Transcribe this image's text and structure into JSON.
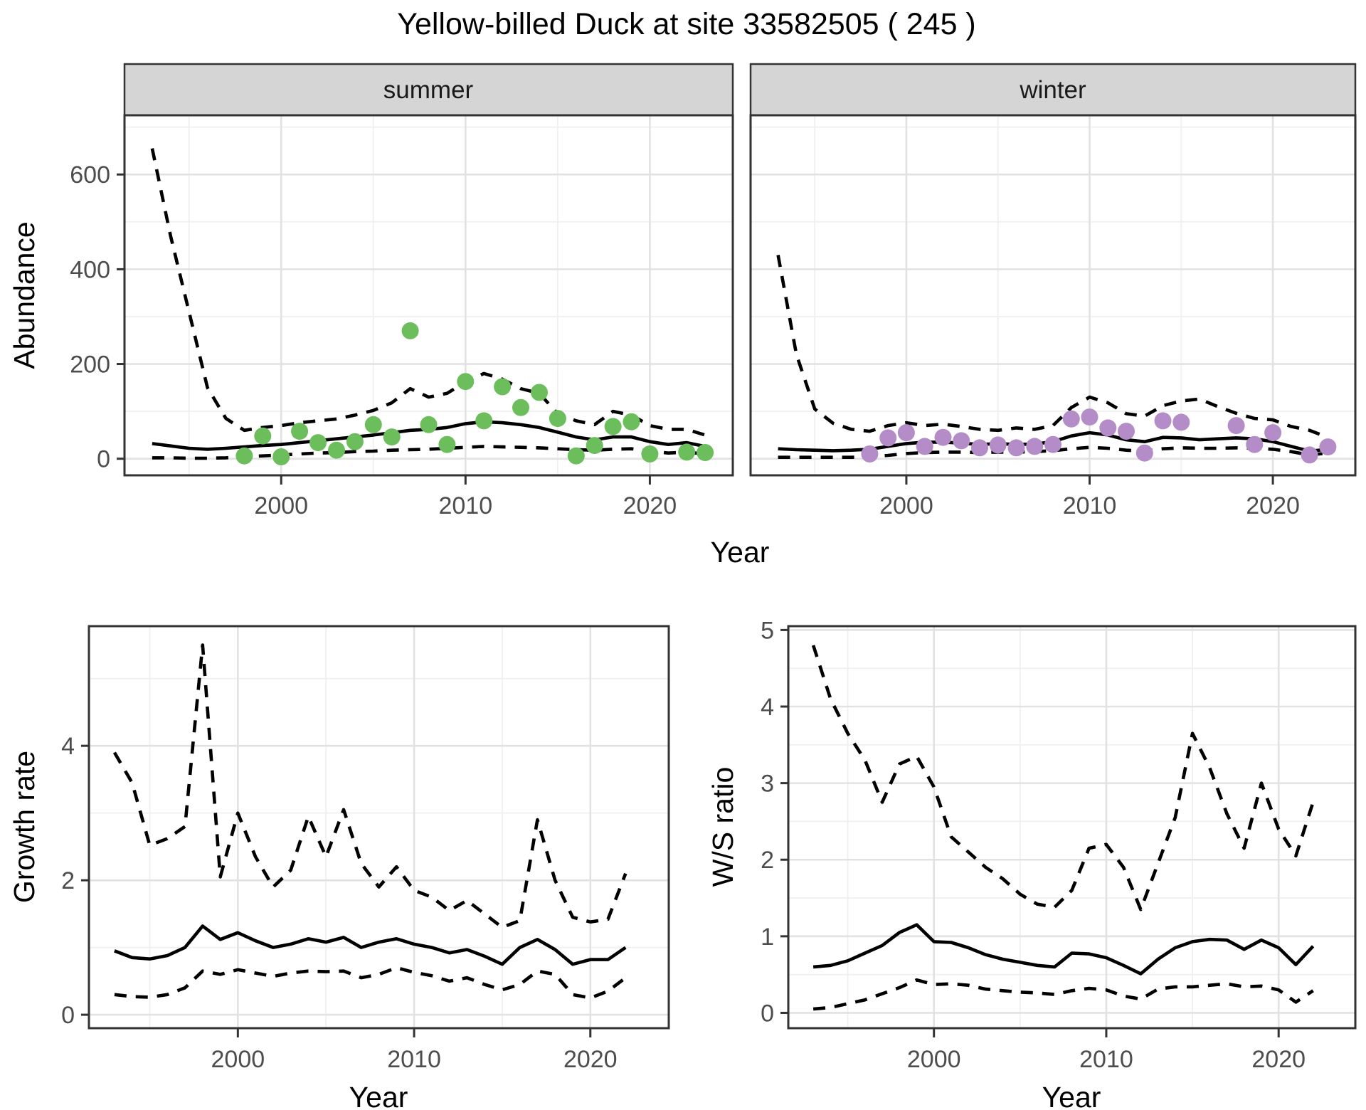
{
  "title": "Yellow-billed Duck at site 33582505 ( 245 )",
  "facet_labels": {
    "summer": "summer",
    "winter": "winter"
  },
  "axis_labels": {
    "abundance": "Abundance",
    "year_top": "Year",
    "growth": "Growth rate",
    "year_growth": "Year",
    "ws": "W/S ratio",
    "year_ws": "Year"
  },
  "colors": {
    "summer_point": "#6BBE5B",
    "winter_point": "#B48CC8",
    "line": "#000000",
    "strip_bg": "#D5D5D5",
    "panel_border": "#333333",
    "grid_major": "#E2E2E2",
    "grid_minor": "#F0F0F0",
    "tick_text": "#4d4d4d",
    "tick_mark": "#333333",
    "panel_bg": "#ffffff"
  },
  "chart_data": [
    {
      "id": "abundance-summer",
      "type": "line",
      "strip": "summer",
      "ylabel": "Abundance",
      "xlabel": "Year",
      "x_domain": [
        1991.5,
        2024.5
      ],
      "y_domain": [
        -35,
        725
      ],
      "x_ticks": [
        2000,
        2010,
        2020
      ],
      "x_minor": [
        1995,
        2005,
        2015
      ],
      "y_ticks": [
        0,
        200,
        400,
        600
      ],
      "y_minor": [
        100,
        300,
        500,
        700
      ],
      "x_years": [
        1993,
        1994,
        1995,
        1996,
        1997,
        1998,
        1999,
        2000,
        2001,
        2002,
        2003,
        2004,
        2005,
        2006,
        2007,
        2008,
        2009,
        2010,
        2011,
        2012,
        2013,
        2014,
        2015,
        2016,
        2017,
        2018,
        2019,
        2020,
        2021,
        2022,
        2023
      ],
      "series": [
        {
          "name": "upper_ci",
          "style": "dashed",
          "values": [
            655,
            470,
            310,
            150,
            85,
            60,
            66,
            70,
            76,
            80,
            84,
            92,
            102,
            118,
            148,
            130,
            138,
            162,
            180,
            168,
            148,
            138,
            95,
            80,
            72,
            100,
            92,
            70,
            62,
            62,
            50
          ]
        },
        {
          "name": "median",
          "style": "solid",
          "values": [
            32,
            27,
            22,
            20,
            22,
            25,
            28,
            30,
            34,
            38,
            42,
            46,
            50,
            55,
            60,
            62,
            66,
            74,
            78,
            76,
            72,
            66,
            56,
            46,
            40,
            46,
            46,
            36,
            30,
            34,
            26
          ]
        },
        {
          "name": "lower_ci",
          "style": "dashed",
          "values": [
            2,
            2,
            1,
            1,
            2,
            4,
            6,
            8,
            10,
            12,
            13,
            15,
            16,
            18,
            19,
            20,
            22,
            24,
            26,
            25,
            24,
            23,
            21,
            19,
            18,
            20,
            21,
            16,
            12,
            14,
            10
          ]
        }
      ],
      "points": {
        "color_key": "summer_point",
        "data": [
          [
            1998,
            6
          ],
          [
            1999,
            48
          ],
          [
            2000,
            4
          ],
          [
            2001,
            58
          ],
          [
            2002,
            34
          ],
          [
            2003,
            18
          ],
          [
            2004,
            36
          ],
          [
            2005,
            72
          ],
          [
            2006,
            46
          ],
          [
            2007,
            270
          ],
          [
            2008,
            72
          ],
          [
            2009,
            30
          ],
          [
            2010,
            163
          ],
          [
            2011,
            80
          ],
          [
            2012,
            152
          ],
          [
            2013,
            108
          ],
          [
            2014,
            140
          ],
          [
            2015,
            85
          ],
          [
            2016,
            6
          ],
          [
            2017,
            28
          ],
          [
            2018,
            68
          ],
          [
            2019,
            78
          ],
          [
            2020,
            10
          ],
          [
            2022,
            14
          ],
          [
            2023,
            13
          ]
        ]
      }
    },
    {
      "id": "abundance-winter",
      "type": "line",
      "strip": "winter",
      "ylabel": "Abundance",
      "xlabel": "Year",
      "x_domain": [
        1991.5,
        2024.5
      ],
      "y_domain": [
        -35,
        725
      ],
      "x_ticks": [
        2000,
        2010,
        2020
      ],
      "x_minor": [
        1995,
        2005,
        2015
      ],
      "y_ticks": [
        0,
        200,
        400,
        600
      ],
      "y_minor": [
        100,
        300,
        500,
        700
      ],
      "x_years": [
        1993,
        1994,
        1995,
        1996,
        1997,
        1998,
        1999,
        2000,
        2001,
        2002,
        2003,
        2004,
        2005,
        2006,
        2007,
        2008,
        2009,
        2010,
        2011,
        2012,
        2013,
        2014,
        2015,
        2016,
        2017,
        2018,
        2019,
        2020,
        2021,
        2022,
        2023
      ],
      "series": [
        {
          "name": "upper_ci",
          "style": "dashed",
          "values": [
            430,
            220,
            105,
            75,
            62,
            58,
            70,
            76,
            70,
            73,
            68,
            62,
            60,
            65,
            62,
            70,
            108,
            130,
            118,
            95,
            90,
            112,
            122,
            126,
            110,
            96,
            85,
            82,
            68,
            60,
            45
          ]
        },
        {
          "name": "median",
          "style": "solid",
          "values": [
            21,
            19,
            18,
            17,
            18,
            20,
            26,
            32,
            35,
            35,
            33,
            30,
            32,
            30,
            31,
            36,
            48,
            55,
            50,
            40,
            36,
            45,
            44,
            40,
            42,
            44,
            42,
            36,
            26,
            16,
            20
          ]
        },
        {
          "name": "lower_ci",
          "style": "dashed",
          "values": [
            3,
            3,
            3,
            3,
            3,
            4,
            7,
            11,
            13,
            14,
            14,
            13,
            14,
            14,
            15,
            17,
            21,
            24,
            22,
            18,
            16,
            21,
            23,
            22,
            22,
            23,
            22,
            20,
            15,
            8,
            12
          ]
        }
      ],
      "points": {
        "color_key": "winter_point",
        "data": [
          [
            1998,
            10
          ],
          [
            1999,
            44
          ],
          [
            2000,
            55
          ],
          [
            2001,
            26
          ],
          [
            2002,
            45
          ],
          [
            2003,
            38
          ],
          [
            2004,
            23
          ],
          [
            2005,
            29
          ],
          [
            2006,
            23
          ],
          [
            2007,
            26
          ],
          [
            2008,
            30
          ],
          [
            2009,
            84
          ],
          [
            2010,
            88
          ],
          [
            2011,
            65
          ],
          [
            2012,
            58
          ],
          [
            2013,
            12
          ],
          [
            2014,
            80
          ],
          [
            2015,
            77
          ],
          [
            2018,
            70
          ],
          [
            2019,
            30
          ],
          [
            2020,
            55
          ],
          [
            2022,
            8
          ],
          [
            2023,
            25
          ]
        ]
      }
    },
    {
      "id": "growth-rate",
      "type": "line",
      "ylabel": "Growth rate",
      "xlabel": "Year",
      "x_domain": [
        1991.55,
        2024.45
      ],
      "y_domain": [
        -0.2,
        5.78
      ],
      "x_ticks": [
        2000,
        2010,
        2020
      ],
      "x_minor": [
        1995,
        2005,
        2015
      ],
      "y_ticks": [
        0,
        2,
        4
      ],
      "y_minor": [
        1,
        3,
        5
      ],
      "x_years": [
        1993,
        1994,
        1995,
        1996,
        1997,
        1998,
        1999,
        2000,
        2001,
        2002,
        2003,
        2004,
        2005,
        2006,
        2007,
        2008,
        2009,
        2010,
        2011,
        2012,
        2013,
        2014,
        2015,
        2016,
        2017,
        2018,
        2019,
        2020,
        2021,
        2022
      ],
      "series": [
        {
          "name": "upper_ci",
          "style": "dashed",
          "values": [
            3.9,
            3.45,
            2.52,
            2.62,
            2.8,
            5.5,
            2.05,
            3.0,
            2.35,
            1.9,
            2.15,
            2.95,
            2.35,
            3.05,
            2.25,
            1.9,
            2.2,
            1.85,
            1.75,
            1.55,
            1.7,
            1.5,
            1.3,
            1.4,
            2.9,
            2.0,
            1.45,
            1.38,
            1.42,
            2.1
          ]
        },
        {
          "name": "median",
          "style": "solid",
          "values": [
            0.95,
            0.85,
            0.83,
            0.88,
            1.0,
            1.32,
            1.12,
            1.22,
            1.1,
            1.0,
            1.05,
            1.13,
            1.08,
            1.15,
            1.0,
            1.08,
            1.13,
            1.05,
            1.0,
            0.92,
            0.97,
            0.87,
            0.75,
            1.0,
            1.12,
            0.97,
            0.75,
            0.82,
            0.82,
            1.0
          ]
        },
        {
          "name": "lower_ci",
          "style": "dashed",
          "values": [
            0.3,
            0.27,
            0.26,
            0.3,
            0.4,
            0.65,
            0.6,
            0.67,
            0.62,
            0.57,
            0.62,
            0.65,
            0.64,
            0.65,
            0.55,
            0.6,
            0.7,
            0.63,
            0.58,
            0.5,
            0.55,
            0.45,
            0.37,
            0.45,
            0.65,
            0.6,
            0.3,
            0.25,
            0.35,
            0.55
          ]
        }
      ]
    },
    {
      "id": "ws-ratio",
      "type": "line",
      "ylabel": "W/S ratio",
      "xlabel": "Year",
      "x_domain": [
        1991.55,
        2024.45
      ],
      "y_domain": [
        -0.2,
        5.05
      ],
      "x_ticks": [
        2000,
        2010,
        2020
      ],
      "x_minor": [
        1995,
        2005,
        2015
      ],
      "y_ticks": [
        0,
        1,
        2,
        3,
        4,
        5
      ],
      "y_minor": [
        0.5,
        1.5,
        2.5,
        3.5,
        4.5
      ],
      "x_years": [
        1993,
        1994,
        1995,
        1996,
        1997,
        1998,
        1999,
        2000,
        2001,
        2002,
        2003,
        2004,
        2005,
        2006,
        2007,
        2008,
        2009,
        2010,
        2011,
        2012,
        2013,
        2014,
        2015,
        2016,
        2017,
        2018,
        2019,
        2020,
        2021,
        2022
      ],
      "series": [
        {
          "name": "upper_ci",
          "style": "dashed",
          "values": [
            4.8,
            4.1,
            3.65,
            3.3,
            2.75,
            3.25,
            3.35,
            2.95,
            2.3,
            2.1,
            1.9,
            1.75,
            1.55,
            1.42,
            1.38,
            1.6,
            2.15,
            2.2,
            1.9,
            1.35,
            1.95,
            2.55,
            3.65,
            3.2,
            2.6,
            2.15,
            3.0,
            2.4,
            2.05,
            2.75
          ]
        },
        {
          "name": "median",
          "style": "solid",
          "values": [
            0.6,
            0.62,
            0.68,
            0.78,
            0.88,
            1.05,
            1.15,
            0.93,
            0.92,
            0.85,
            0.76,
            0.7,
            0.66,
            0.62,
            0.6,
            0.78,
            0.77,
            0.72,
            0.62,
            0.51,
            0.7,
            0.85,
            0.93,
            0.96,
            0.95,
            0.83,
            0.95,
            0.85,
            0.63,
            0.87
          ]
        },
        {
          "name": "lower_ci",
          "style": "dashed",
          "values": [
            0.05,
            0.07,
            0.12,
            0.17,
            0.25,
            0.33,
            0.43,
            0.37,
            0.38,
            0.36,
            0.31,
            0.29,
            0.27,
            0.26,
            0.24,
            0.29,
            0.32,
            0.3,
            0.22,
            0.18,
            0.31,
            0.34,
            0.34,
            0.36,
            0.38,
            0.34,
            0.35,
            0.3,
            0.14,
            0.29
          ]
        }
      ]
    }
  ]
}
